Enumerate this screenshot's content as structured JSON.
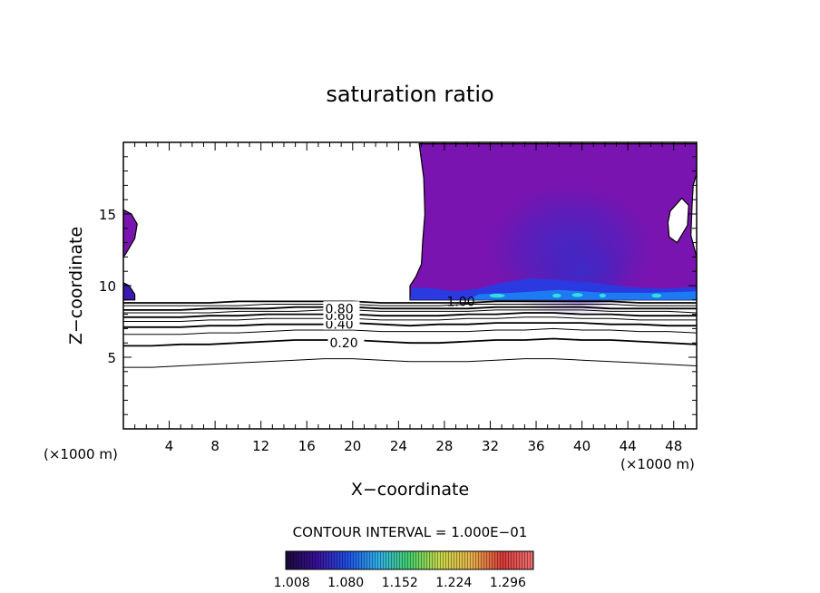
{
  "chart_data": {
    "type": "heatmap",
    "title": "saturation ratio",
    "xlabel": "X−coordinate",
    "ylabel": "Z−coordinate",
    "x_unit_left": "(×1000 m)",
    "x_unit_right": "(×1000 m)",
    "xlim": [
      0,
      50
    ],
    "ylim": [
      0,
      20
    ],
    "x_ticks": [
      4,
      8,
      12,
      16,
      20,
      24,
      28,
      32,
      36,
      40,
      44,
      48
    ],
    "y_ticks": [
      5,
      10,
      15
    ],
    "contour_interval_text": "CONTOUR INTERVAL = 1.000E−01",
    "colorbar": {
      "tick_labels": [
        "1.008",
        "1.080",
        "1.152",
        "1.224",
        "1.296"
      ],
      "tick_values": [
        1.008,
        1.08,
        1.152,
        1.224,
        1.296
      ],
      "range": [
        1.0,
        1.33
      ],
      "colors": [
        "#1a0a3a",
        "#3a0f9a",
        "#1f4fe6",
        "#2fb0e8",
        "#46d06a",
        "#c9d84a",
        "#e8b24a",
        "#d83a3a",
        "#f07070"
      ]
    },
    "contour_labels": [
      {
        "value": 0.2,
        "text": "0.20",
        "x": 18.0,
        "z": 6.0
      },
      {
        "value": 0.4,
        "text": "0.40",
        "x": 17.6,
        "z": 7.3
      },
      {
        "value": 0.6,
        "text": "0.60",
        "x": 17.6,
        "z": 7.9
      },
      {
        "value": 0.8,
        "text": "0.80",
        "x": 17.6,
        "z": 8.4
      },
      {
        "value": 1.0,
        "text": "1.00",
        "x": 28.2,
        "z": 8.9
      }
    ],
    "contour_lines": [
      {
        "value": 0.1,
        "z": [
          4.3,
          4.3,
          4.4,
          4.5,
          4.6,
          4.7,
          4.8,
          4.9,
          4.9,
          4.8,
          4.7,
          4.7,
          4.7,
          4.8,
          4.9,
          4.9,
          4.8,
          4.7,
          4.6,
          4.5,
          4.4
        ]
      },
      {
        "value": 0.2,
        "z": [
          5.8,
          5.8,
          5.9,
          5.9,
          6.0,
          6.1,
          6.2,
          6.2,
          6.2,
          6.1,
          6.0,
          6.0,
          6.1,
          6.2,
          6.2,
          6.3,
          6.2,
          6.2,
          6.1,
          6.0,
          5.9
        ]
      },
      {
        "value": 0.3,
        "z": [
          6.6,
          6.6,
          6.6,
          6.7,
          6.7,
          6.8,
          6.9,
          6.9,
          6.9,
          6.8,
          6.8,
          6.8,
          6.8,
          6.9,
          6.9,
          7.0,
          6.9,
          6.9,
          6.8,
          6.8,
          6.7
        ]
      },
      {
        "value": 0.4,
        "z": [
          7.1,
          7.1,
          7.1,
          7.2,
          7.2,
          7.3,
          7.3,
          7.3,
          7.4,
          7.3,
          7.2,
          7.3,
          7.3,
          7.4,
          7.4,
          7.4,
          7.4,
          7.3,
          7.3,
          7.2,
          7.2
        ]
      },
      {
        "value": 0.5,
        "z": [
          7.5,
          7.5,
          7.5,
          7.6,
          7.6,
          7.7,
          7.7,
          7.7,
          7.7,
          7.6,
          7.6,
          7.6,
          7.7,
          7.7,
          7.8,
          7.8,
          7.7,
          7.7,
          7.6,
          7.6,
          7.6
        ]
      },
      {
        "value": 0.6,
        "z": [
          7.8,
          7.8,
          7.8,
          7.9,
          7.9,
          8.0,
          8.0,
          8.0,
          8.0,
          7.9,
          7.9,
          7.9,
          8.0,
          8.0,
          8.1,
          8.1,
          8.0,
          8.0,
          7.9,
          7.9,
          7.9
        ]
      },
      {
        "value": 0.7,
        "z": [
          8.1,
          8.1,
          8.1,
          8.1,
          8.2,
          8.2,
          8.2,
          8.3,
          8.3,
          8.2,
          8.2,
          8.2,
          8.2,
          8.3,
          8.3,
          8.3,
          8.3,
          8.2,
          8.2,
          8.2,
          8.1
        ]
      },
      {
        "value": 0.8,
        "z": [
          8.3,
          8.3,
          8.3,
          8.4,
          8.4,
          8.4,
          8.5,
          8.5,
          8.5,
          8.4,
          8.4,
          8.4,
          8.4,
          8.5,
          8.5,
          8.5,
          8.5,
          8.4,
          8.4,
          8.4,
          8.4
        ]
      },
      {
        "value": 0.9,
        "z": [
          8.6,
          8.6,
          8.6,
          8.6,
          8.6,
          8.7,
          8.7,
          8.7,
          8.7,
          8.6,
          8.6,
          8.6,
          8.7,
          8.7,
          8.7,
          8.7,
          8.7,
          8.7,
          8.6,
          8.6,
          8.6
        ]
      },
      {
        "value": 1.0,
        "z": [
          8.8,
          8.8,
          8.8,
          8.8,
          8.9,
          8.9,
          8.9,
          8.9,
          8.9,
          8.8,
          8.8,
          8.8,
          8.8,
          8.9,
          8.9,
          8.9,
          8.9,
          8.9,
          8.8,
          8.8,
          8.8
        ]
      }
    ],
    "contour_x": [
      0,
      2.5,
      5,
      7.5,
      10,
      12.5,
      15,
      17.5,
      20,
      22.5,
      25,
      27.5,
      30,
      32.5,
      35,
      37.5,
      40,
      42.5,
      45,
      47.5,
      50
    ],
    "supersaturated_regions": [
      {
        "name": "main",
        "color": "#7a14b0",
        "outline": [
          [
            25.8,
            19.9
          ],
          [
            26.2,
            17.5
          ],
          [
            26.3,
            15.0
          ],
          [
            26.1,
            13.0
          ],
          [
            26.0,
            11.5
          ],
          [
            25.5,
            10.6
          ],
          [
            25.0,
            10.0
          ],
          [
            25.0,
            9.0
          ],
          [
            50,
            9.0
          ],
          [
            50,
            12.0
          ],
          [
            49.5,
            13.5
          ],
          [
            49.6,
            15.5
          ],
          [
            49.7,
            17.0
          ],
          [
            50,
            17.8
          ],
          [
            50,
            19.9
          ]
        ]
      },
      {
        "name": "left-upper",
        "color": "#7a14b0",
        "outline": [
          [
            0,
            15.3
          ],
          [
            0.7,
            15.0
          ],
          [
            1.2,
            14.3
          ],
          [
            1.0,
            13.3
          ],
          [
            0.2,
            12.2
          ],
          [
            0,
            12.0
          ]
        ]
      },
      {
        "name": "left-lower",
        "color": "#3a1ab0",
        "outline": [
          [
            0,
            10.2
          ],
          [
            0.5,
            10.0
          ],
          [
            1.0,
            9.4
          ],
          [
            1.0,
            9.0
          ],
          [
            0,
            9.0
          ]
        ]
      }
    ],
    "dry_hole": {
      "outline": [
        [
          47.7,
          15.2
        ],
        [
          48.7,
          16.1
        ],
        [
          49.3,
          15.6
        ],
        [
          49.2,
          14.2
        ],
        [
          48.3,
          13.0
        ],
        [
          47.6,
          13.4
        ],
        [
          47.5,
          14.4
        ]
      ]
    },
    "grid": false
  }
}
